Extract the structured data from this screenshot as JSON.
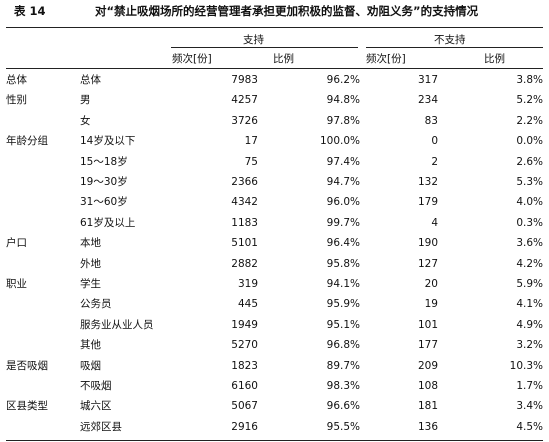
{
  "title": {
    "number": "表 14",
    "text": "对“禁止吸烟场所的经营管理者承担更加积极的监督、劝阻义务”的支持情况"
  },
  "header": {
    "support": "支持",
    "not_support": "不支持",
    "freq": "频次[份]",
    "ratio": "比例"
  },
  "rows": [
    {
      "group": "总体",
      "item": "总体",
      "s_freq": "7983",
      "s_ratio": "96.2%",
      "n_freq": "317",
      "n_ratio": "3.8%"
    },
    {
      "group": "性别",
      "item": "男",
      "s_freq": "4257",
      "s_ratio": "94.8%",
      "n_freq": "234",
      "n_ratio": "5.2%"
    },
    {
      "group": "",
      "item": "女",
      "s_freq": "3726",
      "s_ratio": "97.8%",
      "n_freq": "83",
      "n_ratio": "2.2%"
    },
    {
      "group": "年龄分组",
      "item": "14岁及以下",
      "s_freq": "17",
      "s_ratio": "100.0%",
      "n_freq": "0",
      "n_ratio": "0.0%"
    },
    {
      "group": "",
      "item": "15～18岁",
      "s_freq": "75",
      "s_ratio": "97.4%",
      "n_freq": "2",
      "n_ratio": "2.6%"
    },
    {
      "group": "",
      "item": "19～30岁",
      "s_freq": "2366",
      "s_ratio": "94.7%",
      "n_freq": "132",
      "n_ratio": "5.3%"
    },
    {
      "group": "",
      "item": "31～60岁",
      "s_freq": "4342",
      "s_ratio": "96.0%",
      "n_freq": "179",
      "n_ratio": "4.0%"
    },
    {
      "group": "",
      "item": "61岁及以上",
      "s_freq": "1183",
      "s_ratio": "99.7%",
      "n_freq": "4",
      "n_ratio": "0.3%"
    },
    {
      "group": "户口",
      "item": "本地",
      "s_freq": "5101",
      "s_ratio": "96.4%",
      "n_freq": "190",
      "n_ratio": "3.6%"
    },
    {
      "group": "",
      "item": "外地",
      "s_freq": "2882",
      "s_ratio": "95.8%",
      "n_freq": "127",
      "n_ratio": "4.2%"
    },
    {
      "group": "职业",
      "item": "学生",
      "s_freq": "319",
      "s_ratio": "94.1%",
      "n_freq": "20",
      "n_ratio": "5.9%"
    },
    {
      "group": "",
      "item": "公务员",
      "s_freq": "445",
      "s_ratio": "95.9%",
      "n_freq": "19",
      "n_ratio": "4.1%"
    },
    {
      "group": "",
      "item": "服务业从业人员",
      "s_freq": "1949",
      "s_ratio": "95.1%",
      "n_freq": "101",
      "n_ratio": "4.9%"
    },
    {
      "group": "",
      "item": "其他",
      "s_freq": "5270",
      "s_ratio": "96.8%",
      "n_freq": "177",
      "n_ratio": "3.2%"
    },
    {
      "group": "是否吸烟",
      "item": "吸烟",
      "s_freq": "1823",
      "s_ratio": "89.7%",
      "n_freq": "209",
      "n_ratio": "10.3%"
    },
    {
      "group": "",
      "item": "不吸烟",
      "s_freq": "6160",
      "s_ratio": "98.3%",
      "n_freq": "108",
      "n_ratio": "1.7%"
    },
    {
      "group": "区县类型",
      "item": "城六区",
      "s_freq": "5067",
      "s_ratio": "96.6%",
      "n_freq": "181",
      "n_ratio": "3.4%"
    },
    {
      "group": "",
      "item": "远郊区县",
      "s_freq": "2916",
      "s_ratio": "95.5%",
      "n_freq": "136",
      "n_ratio": "4.5%"
    }
  ]
}
